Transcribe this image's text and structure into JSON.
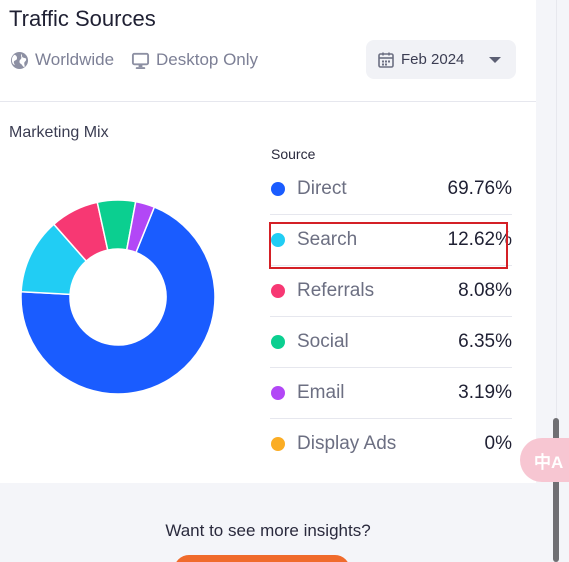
{
  "header": {
    "title": "Traffic Sources",
    "location_filter": "Worldwide",
    "device_filter": "Desktop Only",
    "date": "Feb 2024",
    "icons": [
      "globe-icon",
      "desktop-icon",
      "calendar-icon",
      "chevron-down-icon"
    ]
  },
  "mix": {
    "label": "Marketing Mix",
    "source_header": "Source"
  },
  "chart_data": {
    "type": "pie",
    "categories": [
      "Direct",
      "Search",
      "Referrals",
      "Social",
      "Email",
      "Display Ads"
    ],
    "values": [
      69.76,
      12.62,
      8.08,
      6.35,
      3.19,
      0
    ],
    "colors": [
      "#1a5cff",
      "#21cdf4",
      "#f73873",
      "#0bcf90",
      "#b247f6",
      "#fbad24"
    ],
    "title": "Marketing Mix",
    "donut": true
  },
  "sources": [
    {
      "name": "Direct",
      "pct": "69.76%",
      "color": "#1a5cff"
    },
    {
      "name": "Search",
      "pct": "12.62%",
      "color": "#21cdf4"
    },
    {
      "name": "Referrals",
      "pct": "8.08%",
      "color": "#f73873"
    },
    {
      "name": "Social",
      "pct": "6.35%",
      "color": "#0bcf90"
    },
    {
      "name": "Email",
      "pct": "3.19%",
      "color": "#b247f6"
    },
    {
      "name": "Display Ads",
      "pct": "0%",
      "color": "#fbad24"
    }
  ],
  "cta": {
    "text": "Want to see more insights?"
  },
  "overlay": {
    "translate_icon": "translate-icon",
    "translate_glyph": "中A"
  }
}
